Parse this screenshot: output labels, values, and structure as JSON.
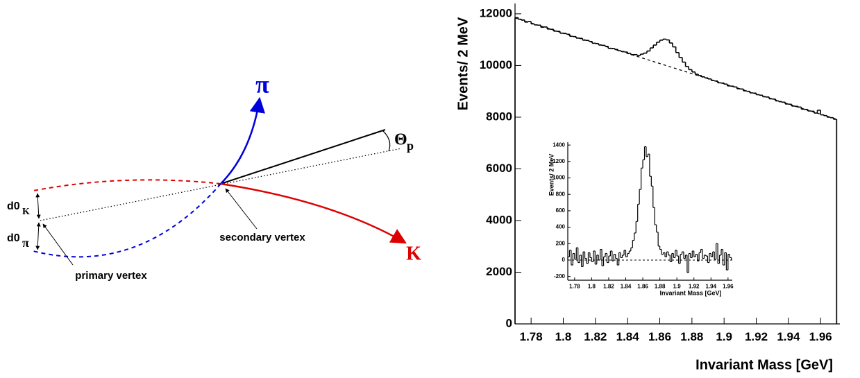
{
  "diagram": {
    "labels": {
      "pi_track": "π",
      "theta": "Θ",
      "theta_sub": "p",
      "d0_k": "d0",
      "d0_k_sub": "K",
      "d0_pi": "d0",
      "d0_pi_sub": "π",
      "primary_vertex": "primary vertex",
      "secondary_vertex": "secondary vertex",
      "k_track": "K"
    }
  },
  "chart_data": [
    {
      "type": "histogram",
      "x_label": "Invariant Mass [GeV]",
      "y_label": "Events/ 2 MeV",
      "color": "#000000",
      "bins": [
        1.77,
        1.772,
        1.774,
        1.776,
        1.778,
        1.78,
        1.782,
        1.784,
        1.786,
        1.788,
        1.79,
        1.792,
        1.794,
        1.796,
        1.798,
        1.8,
        1.802,
        1.804,
        1.806,
        1.808,
        1.81,
        1.812,
        1.814,
        1.816,
        1.818,
        1.82,
        1.822,
        1.824,
        1.826,
        1.828,
        1.83,
        1.832,
        1.834,
        1.836,
        1.838,
        1.84,
        1.842,
        1.844,
        1.846,
        1.848,
        1.85,
        1.852,
        1.854,
        1.856,
        1.858,
        1.86,
        1.862,
        1.864,
        1.866,
        1.868,
        1.87,
        1.872,
        1.874,
        1.876,
        1.878,
        1.88,
        1.882,
        1.884,
        1.886,
        1.888,
        1.89,
        1.892,
        1.894,
        1.896,
        1.898,
        1.9,
        1.902,
        1.904,
        1.906,
        1.908,
        1.91,
        1.912,
        1.914,
        1.916,
        1.918,
        1.92,
        1.922,
        1.924,
        1.926,
        1.928,
        1.93,
        1.932,
        1.934,
        1.936,
        1.938,
        1.94,
        1.942,
        1.944,
        1.946,
        1.948,
        1.95,
        1.952,
        1.954,
        1.956,
        1.958,
        1.96,
        1.962,
        1.964,
        1.966,
        1.968,
        1.97
      ],
      "values": [
        11850,
        11790,
        11760,
        11680,
        11700,
        11610,
        11570,
        11560,
        11480,
        11490,
        11410,
        11400,
        11330,
        11320,
        11250,
        11240,
        11210,
        11130,
        11120,
        11060,
        11050,
        10980,
        10970,
        10930,
        10860,
        10850,
        10790,
        10780,
        10740,
        10660,
        10660,
        10620,
        10570,
        10540,
        10520,
        10470,
        10420,
        10420,
        10390,
        10440,
        10480,
        10560,
        10680,
        10790,
        10900,
        10980,
        11020,
        10990,
        10870,
        10720,
        10500,
        10310,
        10130,
        9960,
        9840,
        9750,
        9660,
        9610,
        9560,
        9520,
        9480,
        9420,
        9400,
        9330,
        9320,
        9280,
        9210,
        9200,
        9170,
        9100,
        9090,
        9020,
        9000,
        8940,
        8930,
        8870,
        8850,
        8790,
        8780,
        8710,
        8700,
        8630,
        8600,
        8580,
        8510,
        8500,
        8430,
        8420,
        8390,
        8310,
        8300,
        8240,
        8230,
        8160,
        8270,
        8090,
        8060,
        8000,
        7980,
        7920
      ],
      "fit": {
        "x": [
          1.77,
          1.97
        ],
        "values": [
          11840,
          7920
        ]
      },
      "xlim": [
        1.77,
        1.972
      ],
      "ylim": [
        0,
        12400
      ],
      "xticks": [
        1.78,
        1.8,
        1.82,
        1.84,
        1.86,
        1.88,
        1.9,
        1.92,
        1.94,
        1.96
      ],
      "yticks": [
        0,
        2000,
        4000,
        6000,
        8000,
        10000,
        12000
      ]
    },
    {
      "type": "histogram",
      "x_label": "Invariant Mass [GeV]",
      "y_label": "Events/ 2 MeV",
      "color": "#000000",
      "bins": [
        1.772,
        1.774,
        1.776,
        1.778,
        1.78,
        1.782,
        1.784,
        1.786,
        1.788,
        1.79,
        1.792,
        1.794,
        1.796,
        1.798,
        1.8,
        1.802,
        1.804,
        1.806,
        1.808,
        1.81,
        1.812,
        1.814,
        1.816,
        1.818,
        1.82,
        1.822,
        1.824,
        1.826,
        1.828,
        1.83,
        1.832,
        1.834,
        1.836,
        1.838,
        1.84,
        1.842,
        1.844,
        1.846,
        1.848,
        1.85,
        1.852,
        1.854,
        1.856,
        1.858,
        1.86,
        1.862,
        1.864,
        1.866,
        1.868,
        1.87,
        1.872,
        1.874,
        1.876,
        1.878,
        1.88,
        1.882,
        1.884,
        1.886,
        1.888,
        1.89,
        1.892,
        1.894,
        1.896,
        1.898,
        1.9,
        1.902,
        1.904,
        1.906,
        1.908,
        1.91,
        1.912,
        1.914,
        1.916,
        1.918,
        1.92,
        1.922,
        1.924,
        1.926,
        1.928,
        1.93,
        1.932,
        1.934,
        1.936,
        1.938,
        1.94,
        1.942,
        1.944,
        1.946,
        1.948,
        1.95,
        1.952,
        1.954,
        1.956,
        1.958,
        1.96,
        1.962,
        1.964
      ],
      "values": [
        40,
        120,
        -60,
        80,
        10,
        150,
        -30,
        60,
        -80,
        100,
        20,
        -40,
        90,
        30,
        -20,
        110,
        -50,
        60,
        0,
        130,
        -70,
        40,
        80,
        -30,
        50,
        110,
        -10,
        70,
        20,
        -60,
        90,
        30,
        60,
        120,
        40,
        80,
        110,
        150,
        240,
        330,
        470,
        680,
        860,
        1120,
        1220,
        1380,
        1260,
        1290,
        1020,
        900,
        640,
        430,
        340,
        170,
        130,
        70,
        90,
        40,
        100,
        60,
        -20,
        80,
        30,
        120,
        50,
        -40,
        70,
        100,
        20,
        60,
        -150,
        80,
        30,
        110,
        40,
        70,
        -10,
        90,
        130,
        20,
        60,
        50,
        -30,
        80,
        40,
        100,
        10,
        200,
        -40,
        60,
        130,
        -60,
        90,
        -120,
        70,
        30
      ],
      "reference_line": 0,
      "xlim": [
        1.772,
        1.965
      ],
      "ylim": [
        -245,
        1435
      ],
      "xticks": [
        1.78,
        1.8,
        1.82,
        1.84,
        1.86,
        1.88,
        1.9,
        1.92,
        1.94,
        1.96
      ],
      "yticks": [
        -200,
        0,
        200,
        400,
        600,
        800,
        1000,
        1200,
        1400
      ]
    }
  ]
}
